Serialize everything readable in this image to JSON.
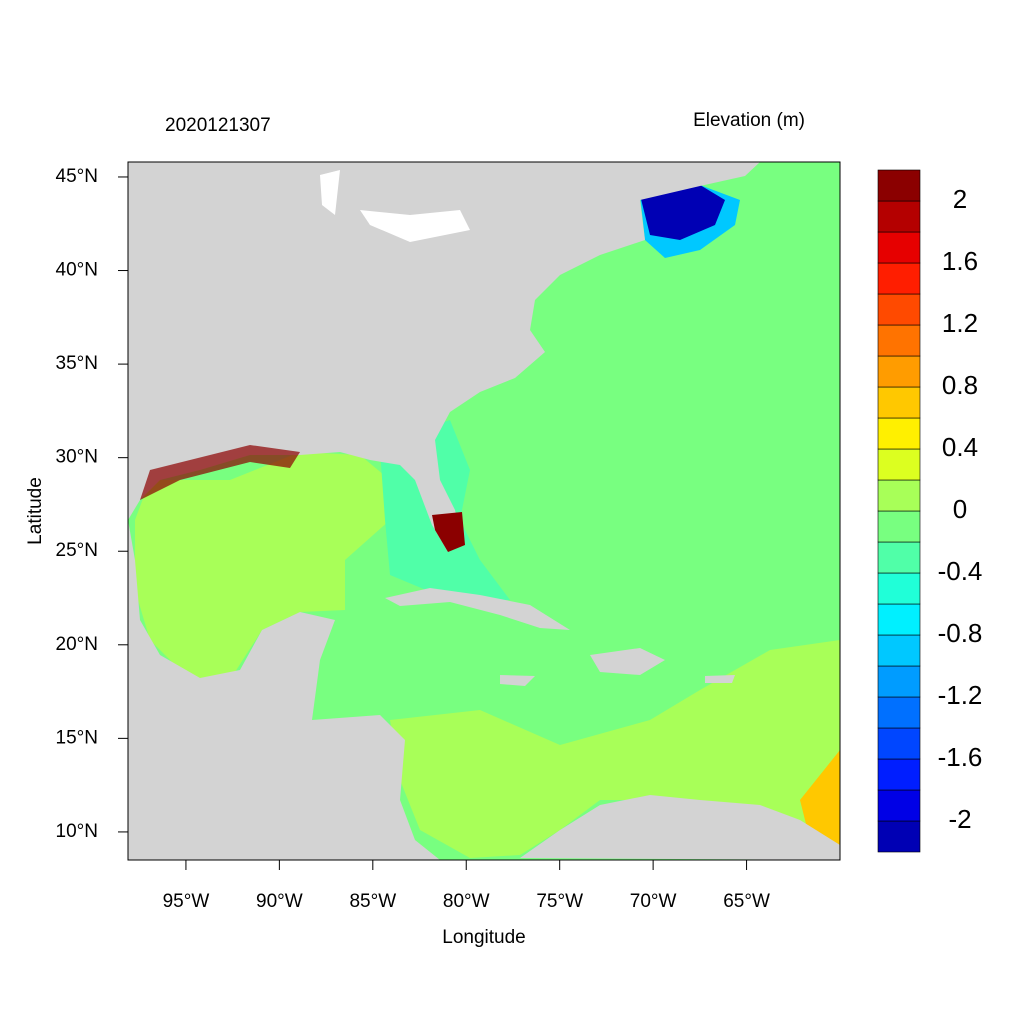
{
  "map": {
    "title": "2020121307",
    "xlabel": "Longitude",
    "ylabel": "Latitude",
    "xlim": [
      -98.1,
      -60
    ],
    "ylim": [
      8.5,
      45.8
    ],
    "xticks": [
      {
        "value": -95,
        "label": "95°W"
      },
      {
        "value": -90,
        "label": "90°W"
      },
      {
        "value": -85,
        "label": "85°W"
      },
      {
        "value": -80,
        "label": "80°W"
      },
      {
        "value": -75,
        "label": "75°W"
      },
      {
        "value": -70,
        "label": "70°W"
      },
      {
        "value": -65,
        "label": "65°W"
      }
    ],
    "yticks": [
      {
        "value": 10,
        "label": "10°N"
      },
      {
        "value": 15,
        "label": "15°N"
      },
      {
        "value": 20,
        "label": "20°N"
      },
      {
        "value": 25,
        "label": "25°N"
      },
      {
        "value": 30,
        "label": "30°N"
      },
      {
        "value": 35,
        "label": "35°N"
      },
      {
        "value": 40,
        "label": "40°N"
      },
      {
        "value": 45,
        "label": "45°N"
      }
    ]
  },
  "colorbar": {
    "title": "Elevation (m)",
    "levels": [
      -2.2,
      -2,
      -1.8,
      -1.6,
      -1.4,
      -1.2,
      -1,
      -0.8,
      -0.6,
      -0.4,
      -0.2,
      0,
      0.2,
      0.4,
      0.6,
      0.8,
      1,
      1.2,
      1.4,
      1.6,
      1.8,
      2,
      2.2
    ],
    "colors": [
      "#0000b4",
      "#0000e6",
      "#001eff",
      "#0046ff",
      "#0070ff",
      "#009cff",
      "#00c8ff",
      "#00f0ff",
      "#20ffd8",
      "#50ffa8",
      "#78ff80",
      "#a8ff58",
      "#dcff20",
      "#fff000",
      "#ffc800",
      "#ff9c00",
      "#ff7300",
      "#ff4a00",
      "#ff1e00",
      "#e60000",
      "#b40000",
      "#8b0000"
    ],
    "ticks": [
      -2,
      -1.6,
      -1.2,
      -0.8,
      -0.4,
      0,
      0.4,
      0.8,
      1.2,
      1.6,
      2
    ]
  }
}
